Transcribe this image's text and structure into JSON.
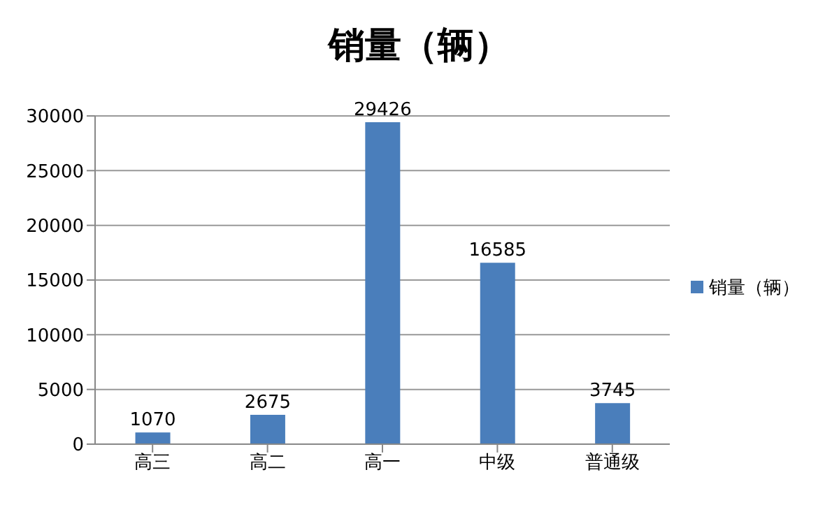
{
  "chart_data": {
    "type": "bar",
    "title": "销量（辆）",
    "categories": [
      "高三",
      "高二",
      "高一",
      "中级",
      "普通级"
    ],
    "series": [
      {
        "name": "销量（辆）",
        "color": "#4a7ebb",
        "values": [
          1070,
          2675,
          29426,
          16585,
          3745
        ]
      }
    ],
    "ylim": [
      0,
      30000
    ],
    "yticks": [
      0,
      5000,
      10000,
      15000,
      20000,
      25000,
      30000
    ],
    "grid": "y",
    "legend": "right",
    "data_labels": true
  }
}
